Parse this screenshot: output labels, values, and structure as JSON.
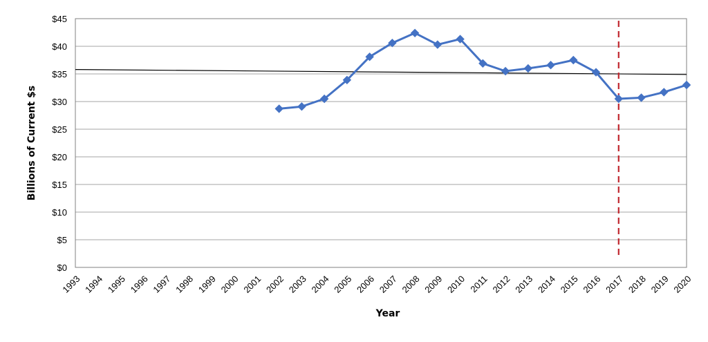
{
  "chart_data": {
    "type": "line",
    "title": "",
    "xlabel": "Year",
    "ylabel": "Billions of Current $s",
    "categories": [
      "1993",
      "1994",
      "1995",
      "1996",
      "1997",
      "1998",
      "1999",
      "2000",
      "2001",
      "2002",
      "2003",
      "2004",
      "2005",
      "2006",
      "2007",
      "2008",
      "2009",
      "2010",
      "2011",
      "2012",
      "2013",
      "2014",
      "2015",
      "2016",
      "2017",
      "2018",
      "2019",
      "2020"
    ],
    "y_ticks": [
      "$0",
      "$5",
      "$10",
      "$15",
      "$20",
      "$25",
      "$30",
      "$35",
      "$40",
      "$45"
    ],
    "ylim": [
      0,
      45
    ],
    "grid": true,
    "series": [
      {
        "values": [
          null,
          null,
          null,
          null,
          null,
          null,
          null,
          null,
          null,
          28.7,
          29.1,
          30.5,
          33.9,
          38.1,
          40.6,
          42.4,
          40.3,
          41.3,
          36.9,
          35.5,
          36.0,
          36.6,
          37.5,
          35.3,
          30.5,
          30.7,
          31.7,
          33.0
        ],
        "color": "#4472C4",
        "marker": "diamond"
      }
    ],
    "trendline": {
      "start": [
        1993,
        35.8
      ],
      "end": [
        2020,
        34.9
      ],
      "color": "#000000"
    },
    "reference_line": {
      "x": "2017",
      "color": "#C0262D",
      "style": "dashed"
    }
  }
}
